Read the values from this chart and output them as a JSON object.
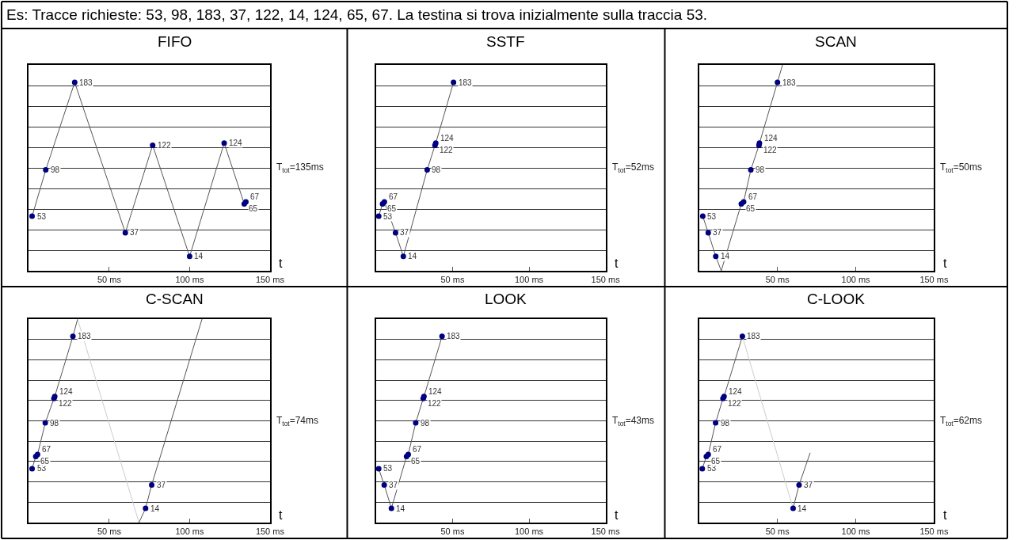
{
  "chart_data": [
    {
      "type": "other",
      "title": "Es: Tracce richieste: 53, 98, 183, 37, 122, 14, 124, 65, 67. La testina si trova inizialmente sulla traccia 53."
    },
    {
      "type": "line",
      "title": "FIFO",
      "xlabel": "t",
      "xlim": [
        0,
        150
      ],
      "xticks": [
        {
          "value": 50,
          "label": "50 ms"
        },
        {
          "value": 100,
          "label": "100 ms"
        },
        {
          "value": 150,
          "label": "150 ms"
        }
      ],
      "ylim": [
        0,
        200
      ],
      "yticks": [
        {
          "value": 20,
          "label": null
        },
        {
          "value": 40,
          "label": null
        },
        {
          "value": 60,
          "label": null
        },
        {
          "value": 80,
          "label": null
        },
        {
          "value": 100,
          "label": null
        },
        {
          "value": 120,
          "label": null
        },
        {
          "value": 140,
          "label": null
        },
        {
          "value": 160,
          "label": null
        },
        {
          "value": 180,
          "label": null
        }
      ],
      "grid": "y",
      "tick_labels": "x",
      "annotations": [
        "T$_{tot}$=135ms"
      ],
      "series": [
        {
          "type": "line",
          "color": "#555555",
          "marker": "none",
          "x": [
            2,
            10.5,
            28.5,
            60,
            77,
            100,
            121.5,
            134,
            135
          ],
          "values": [
            53,
            98,
            183,
            37,
            122,
            14,
            124,
            65,
            67
          ]
        },
        {
          "type": "scatter",
          "color": "#000080",
          "marker": "circle",
          "data_labels": true,
          "x": [
            2,
            10.5,
            28.5,
            60,
            77,
            100,
            121.5,
            134,
            135
          ],
          "values": [
            53,
            98,
            183,
            37,
            122,
            14,
            124,
            65,
            67
          ]
        }
      ]
    },
    {
      "type": "line",
      "title": "SSTF",
      "xlabel": "t",
      "xlim": [
        0,
        150
      ],
      "xticks": [
        {
          "value": 50,
          "label": "50 ms"
        },
        {
          "value": 100,
          "label": "100 ms"
        },
        {
          "value": 150,
          "label": "150 ms"
        }
      ],
      "ylim": [
        0,
        200
      ],
      "yticks": [
        {
          "value": 20,
          "label": null
        },
        {
          "value": 40,
          "label": null
        },
        {
          "value": 60,
          "label": null
        },
        {
          "value": 80,
          "label": null
        },
        {
          "value": 100,
          "label": null
        },
        {
          "value": 120,
          "label": null
        },
        {
          "value": 140,
          "label": null
        },
        {
          "value": 160,
          "label": null
        },
        {
          "value": 180,
          "label": null
        }
      ],
      "grid": "y",
      "tick_labels": "x",
      "annotations": [
        "T$_{tot}$=52ms"
      ],
      "series": [
        {
          "type": "line",
          "color": "#555555",
          "marker": "none",
          "x": [
            1.7,
            4.2,
            5.4,
            12.7,
            17.8,
            33.4,
            38.5,
            39,
            50.6
          ],
          "values": [
            53,
            65,
            67,
            37,
            14,
            98,
            122,
            124,
            183
          ]
        },
        {
          "type": "scatter",
          "color": "#000080",
          "marker": "circle",
          "data_labels": true,
          "x": [
            1.7,
            4.2,
            5.4,
            12.7,
            17.8,
            33.4,
            38.5,
            39,
            50.6
          ],
          "values": [
            53,
            65,
            67,
            37,
            14,
            98,
            122,
            124,
            183
          ]
        }
      ]
    },
    {
      "type": "line",
      "title": "SCAN",
      "xlabel": "t",
      "xlim": [
        0,
        150
      ],
      "xticks": [
        {
          "value": 50,
          "label": "50 ms"
        },
        {
          "value": 100,
          "label": "100 ms"
        },
        {
          "value": 150,
          "label": "150 ms"
        }
      ],
      "ylim": [
        0,
        200
      ],
      "yticks": [
        {
          "value": 20,
          "label": null
        },
        {
          "value": 40,
          "label": null
        },
        {
          "value": 60,
          "label": null
        },
        {
          "value": 80,
          "label": null
        },
        {
          "value": 100,
          "label": null
        },
        {
          "value": 120,
          "label": null
        },
        {
          "value": 140,
          "label": null
        },
        {
          "value": 160,
          "label": null
        },
        {
          "value": 180,
          "label": null
        }
      ],
      "grid": "y",
      "tick_labels": "x",
      "annotations": [
        "T$_{tot}$=50ms"
      ],
      "series": [
        {
          "type": "line",
          "color": "#555555",
          "marker": "none",
          "x": [
            2.3,
            5.8,
            10.6,
            14.1,
            26.9,
            28.4,
            33,
            38.2,
            38.5,
            50,
            53.2
          ],
          "values": [
            53,
            37,
            14,
            0,
            65,
            67,
            98,
            122,
            124,
            183,
            200
          ]
        },
        {
          "type": "scatter",
          "color": "#000080",
          "marker": "circle",
          "data_labels": true,
          "x": [
            2.3,
            5.8,
            10.6,
            26.9,
            28.4,
            33,
            38.2,
            38.5,
            50
          ],
          "values": [
            53,
            37,
            14,
            65,
            67,
            98,
            122,
            124,
            183
          ]
        }
      ]
    },
    {
      "type": "line",
      "title": "C-SCAN",
      "xlabel": "t",
      "xlim": [
        0,
        150
      ],
      "xticks": [
        {
          "value": 50,
          "label": "50 ms"
        },
        {
          "value": 100,
          "label": "100 ms"
        },
        {
          "value": 150,
          "label": "150 ms"
        }
      ],
      "ylim": [
        0,
        200
      ],
      "yticks": [
        {
          "value": 20,
          "label": null
        },
        {
          "value": 40,
          "label": null
        },
        {
          "value": 60,
          "label": null
        },
        {
          "value": 80,
          "label": null
        },
        {
          "value": 100,
          "label": null
        },
        {
          "value": 120,
          "label": null
        },
        {
          "value": 140,
          "label": null
        },
        {
          "value": 160,
          "label": null
        },
        {
          "value": 180,
          "label": null
        }
      ],
      "grid": "y",
      "tick_labels": "x",
      "annotations": [
        "T$_{tot}$=74ms"
      ],
      "series": [
        {
          "type": "line",
          "color": "#555555",
          "marker": "none",
          "x": [
            2,
            4.3,
            5.4,
            10.2,
            15.6,
            16.1,
            27.4,
            30.3
          ],
          "values": [
            53,
            65,
            67,
            98,
            122,
            124,
            183,
            200
          ]
        },
        {
          "type": "line",
          "color": "#cccccc",
          "marker": "none",
          "x": [
            30.3,
            68.5
          ],
          "values": [
            200,
            0
          ]
        },
        {
          "type": "line",
          "color": "#555555",
          "marker": "none",
          "x": [
            68.5,
            72.6,
            76.4,
            107.7
          ],
          "values": [
            0,
            14,
            37,
            200
          ]
        },
        {
          "type": "scatter",
          "color": "#000080",
          "marker": "circle",
          "data_labels": true,
          "x": [
            2,
            4.3,
            5.4,
            10.2,
            15.6,
            16.1,
            27.4,
            72.6,
            76.4
          ],
          "values": [
            53,
            65,
            67,
            98,
            122,
            124,
            183,
            14,
            37
          ]
        }
      ]
    },
    {
      "type": "line",
      "title": "LOOK",
      "xlabel": "t",
      "xlim": [
        0,
        150
      ],
      "xticks": [
        {
          "value": 50,
          "label": "50 ms"
        },
        {
          "value": 100,
          "label": "100 ms"
        },
        {
          "value": 150,
          "label": "150 ms"
        }
      ],
      "ylim": [
        0,
        200
      ],
      "yticks": [
        {
          "value": 20,
          "label": null
        },
        {
          "value": 40,
          "label": null
        },
        {
          "value": 60,
          "label": null
        },
        {
          "value": 80,
          "label": null
        },
        {
          "value": 100,
          "label": null
        },
        {
          "value": 120,
          "label": null
        },
        {
          "value": 140,
          "label": null
        },
        {
          "value": 160,
          "label": null
        },
        {
          "value": 180,
          "label": null
        }
      ],
      "grid": "y",
      "tick_labels": "x",
      "annotations": [
        "T$_{tot}$=43ms"
      ],
      "series": [
        {
          "type": "line",
          "color": "#555555",
          "marker": "none",
          "x": [
            1.7,
            5.3,
            10,
            19.9,
            21,
            25.9,
            30.8,
            31.3,
            43.1
          ],
          "values": [
            53,
            37,
            14,
            65,
            67,
            98,
            122,
            124,
            183
          ]
        },
        {
          "type": "scatter",
          "color": "#000080",
          "marker": "circle",
          "data_labels": true,
          "x": [
            1.7,
            5.3,
            10,
            19.9,
            21,
            25.9,
            30.8,
            31.3,
            43.1
          ],
          "values": [
            53,
            37,
            14,
            65,
            67,
            98,
            122,
            124,
            183
          ]
        }
      ]
    },
    {
      "type": "line",
      "title": "C-LOOK",
      "xlabel": "t",
      "xlim": [
        0,
        150
      ],
      "xticks": [
        {
          "value": 50,
          "label": "50 ms"
        },
        {
          "value": 100,
          "label": "100 ms"
        },
        {
          "value": 150,
          "label": "150 ms"
        }
      ],
      "ylim": [
        0,
        200
      ],
      "yticks": [
        {
          "value": 20,
          "label": null
        },
        {
          "value": 40,
          "label": null
        },
        {
          "value": 60,
          "label": null
        },
        {
          "value": 80,
          "label": null
        },
        {
          "value": 100,
          "label": null
        },
        {
          "value": 120,
          "label": null
        },
        {
          "value": 140,
          "label": null
        },
        {
          "value": 160,
          "label": null
        },
        {
          "value": 180,
          "label": null
        }
      ],
      "grid": "y",
      "tick_labels": "x",
      "annotations": [
        "T$_{tot}$=62ms"
      ],
      "series": [
        {
          "type": "line",
          "color": "#555555",
          "marker": "none",
          "x": [
            2,
            4.6,
            5.8,
            10.5,
            15.2,
            15.9,
            27.6
          ],
          "values": [
            53,
            65,
            67,
            98,
            122,
            124,
            183
          ]
        },
        {
          "type": "line",
          "color": "#cccccc",
          "marker": "none",
          "x": [
            27.6,
            60
          ],
          "values": [
            183,
            14
          ]
        },
        {
          "type": "line",
          "color": "#555555",
          "marker": "none",
          "x": [
            60,
            63.8,
            70.9
          ],
          "values": [
            14,
            37,
            68.6
          ]
        },
        {
          "type": "scatter",
          "color": "#000080",
          "marker": "circle",
          "data_labels": true,
          "x": [
            2,
            4.6,
            5.8,
            10.5,
            15.2,
            15.9,
            27.6,
            60,
            63.8
          ],
          "values": [
            53,
            65,
            67,
            98,
            122,
            124,
            183,
            14,
            37
          ]
        }
      ]
    }
  ]
}
